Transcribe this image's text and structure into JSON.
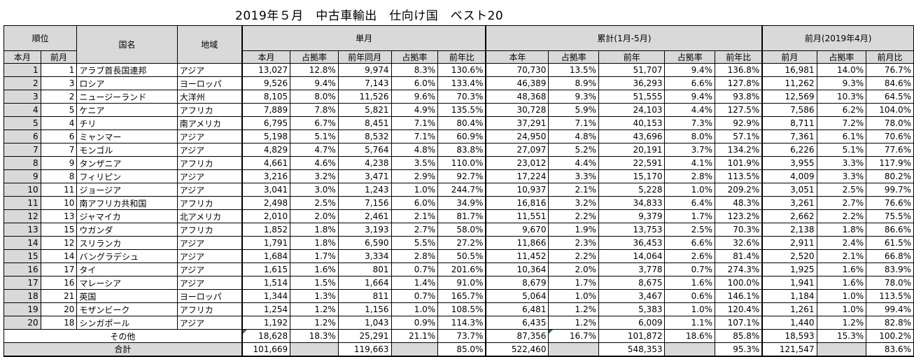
{
  "title": "2019年５月　中古車輸出　仕向け国　ベスト20",
  "headers": {
    "rank": "順位",
    "country": "国名",
    "region": "地域",
    "monthly": "単月",
    "cumulative": "累計(1月-5月)",
    "prev_month_group": "前月(2019年4月)",
    "rank_this": "本月",
    "rank_prev": "前月",
    "m_this": "本月",
    "m_share": "占拠率",
    "m_prev_year": "前年同月",
    "m_share2": "占拠率",
    "m_yoy": "前年比",
    "c_this": "本年",
    "c_share": "占拠率",
    "c_prev": "前年",
    "c_share2": "占拠率",
    "c_yoy": "前年比",
    "p_prev": "前月",
    "p_share": "占拠率",
    "p_ratio": "前月比"
  },
  "rows": [
    {
      "r": "1",
      "p": "1",
      "name": "アラブ首長国連邦",
      "region": "アジア",
      "m": "13,027",
      "ms": "12.8%",
      "mp": "9,974",
      "mps": "8.3%",
      "my": "130.6%",
      "c": "70,730",
      "cs": "13.5%",
      "cp": "51,707",
      "cps": "9.4%",
      "cy": "136.8%",
      "pm": "16,981",
      "pms": "14.0%",
      "pr": "76.7%"
    },
    {
      "r": "2",
      "p": "3",
      "name": "ロシア",
      "region": "ヨーロッパ",
      "m": "9,526",
      "ms": "9.4%",
      "mp": "7,143",
      "mps": "6.0%",
      "my": "133.4%",
      "c": "46,389",
      "cs": "8.9%",
      "cp": "36,293",
      "cps": "6.6%",
      "cy": "127.8%",
      "pm": "11,262",
      "pms": "9.3%",
      "pr": "84.6%"
    },
    {
      "r": "3",
      "p": "2",
      "name": "ニュージーランド",
      "region": "大洋州",
      "m": "8,105",
      "ms": "8.0%",
      "mp": "11,526",
      "mps": "9.6%",
      "my": "70.3%",
      "c": "48,368",
      "cs": "9.3%",
      "cp": "51,555",
      "cps": "9.4%",
      "cy": "93.8%",
      "pm": "12,569",
      "pms": "10.3%",
      "pr": "64.5%"
    },
    {
      "r": "4",
      "p": "5",
      "name": "ケニア",
      "region": "アフリカ",
      "m": "7,889",
      "ms": "7.8%",
      "mp": "5,821",
      "mps": "4.9%",
      "my": "135.5%",
      "c": "30,728",
      "cs": "5.9%",
      "cp": "24,103",
      "cps": "4.4%",
      "cy": "127.5%",
      "pm": "7,586",
      "pms": "6.2%",
      "pr": "104.0%"
    },
    {
      "r": "5",
      "p": "4",
      "name": "チリ",
      "region": "南アメリカ",
      "m": "6,795",
      "ms": "6.7%",
      "mp": "8,451",
      "mps": "7.1%",
      "my": "80.4%",
      "c": "37,291",
      "cs": "7.1%",
      "cp": "40,153",
      "cps": "7.3%",
      "cy": "92.9%",
      "pm": "8,711",
      "pms": "7.2%",
      "pr": "78.0%"
    },
    {
      "r": "6",
      "p": "6",
      "name": "ミャンマー",
      "region": "アジア",
      "m": "5,198",
      "ms": "5.1%",
      "mp": "8,532",
      "mps": "7.1%",
      "my": "60.9%",
      "c": "24,950",
      "cs": "4.8%",
      "cp": "43,696",
      "cps": "8.0%",
      "cy": "57.1%",
      "pm": "7,361",
      "pms": "6.1%",
      "pr": "70.6%"
    },
    {
      "r": "7",
      "p": "7",
      "name": "モンゴル",
      "region": "アジア",
      "m": "4,829",
      "ms": "4.7%",
      "mp": "5,764",
      "mps": "4.8%",
      "my": "83.8%",
      "c": "27,097",
      "cs": "5.2%",
      "cp": "20,191",
      "cps": "3.7%",
      "cy": "134.2%",
      "pm": "6,226",
      "pms": "5.1%",
      "pr": "77.6%"
    },
    {
      "r": "8",
      "p": "9",
      "name": "タンザニア",
      "region": "アフリカ",
      "m": "4,661",
      "ms": "4.6%",
      "mp": "4,238",
      "mps": "3.5%",
      "my": "110.0%",
      "c": "23,012",
      "cs": "4.4%",
      "cp": "22,591",
      "cps": "4.1%",
      "cy": "101.9%",
      "pm": "3,955",
      "pms": "3.3%",
      "pr": "117.9%"
    },
    {
      "r": "9",
      "p": "8",
      "name": "フィリピン",
      "region": "アジア",
      "m": "3,216",
      "ms": "3.2%",
      "mp": "3,471",
      "mps": "2.9%",
      "my": "92.7%",
      "c": "17,224",
      "cs": "3.3%",
      "cp": "15,170",
      "cps": "2.8%",
      "cy": "113.5%",
      "pm": "4,009",
      "pms": "3.3%",
      "pr": "80.2%"
    },
    {
      "r": "10",
      "p": "11",
      "name": "ジョージア",
      "region": "アジア",
      "m": "3,041",
      "ms": "3.0%",
      "mp": "1,243",
      "mps": "1.0%",
      "my": "244.7%",
      "c": "10,937",
      "cs": "2.1%",
      "cp": "5,228",
      "cps": "1.0%",
      "cy": "209.2%",
      "pm": "3,051",
      "pms": "2.5%",
      "pr": "99.7%"
    },
    {
      "r": "11",
      "p": "10",
      "name": "南アフリカ共和国",
      "region": "アフリカ",
      "m": "2,498",
      "ms": "2.5%",
      "mp": "7,156",
      "mps": "6.0%",
      "my": "34.9%",
      "c": "16,816",
      "cs": "3.2%",
      "cp": "34,833",
      "cps": "6.4%",
      "cy": "48.3%",
      "pm": "3,261",
      "pms": "2.7%",
      "pr": "76.6%"
    },
    {
      "r": "12",
      "p": "13",
      "name": "ジャマイカ",
      "region": "北アメリカ",
      "m": "2,010",
      "ms": "2.0%",
      "mp": "2,461",
      "mps": "2.1%",
      "my": "81.7%",
      "c": "11,551",
      "cs": "2.2%",
      "cp": "9,379",
      "cps": "1.7%",
      "cy": "123.2%",
      "pm": "2,662",
      "pms": "2.2%",
      "pr": "75.5%"
    },
    {
      "r": "13",
      "p": "15",
      "name": "ウガンダ",
      "region": "アフリカ",
      "m": "1,852",
      "ms": "1.8%",
      "mp": "3,193",
      "mps": "2.7%",
      "my": "58.0%",
      "c": "9,670",
      "cs": "1.9%",
      "cp": "13,753",
      "cps": "2.5%",
      "cy": "70.3%",
      "pm": "2,138",
      "pms": "1.8%",
      "pr": "86.6%"
    },
    {
      "r": "14",
      "p": "12",
      "name": "スリランカ",
      "region": "アジア",
      "m": "1,791",
      "ms": "1.8%",
      "mp": "6,590",
      "mps": "5.5%",
      "my": "27.2%",
      "c": "11,866",
      "cs": "2.3%",
      "cp": "36,453",
      "cps": "6.6%",
      "cy": "32.6%",
      "pm": "2,911",
      "pms": "2.4%",
      "pr": "61.5%"
    },
    {
      "r": "15",
      "p": "14",
      "name": "バングラデシュ",
      "region": "アジア",
      "m": "1,684",
      "ms": "1.7%",
      "mp": "3,334",
      "mps": "2.8%",
      "my": "50.5%",
      "c": "11,452",
      "cs": "2.2%",
      "cp": "14,064",
      "cps": "2.6%",
      "cy": "81.4%",
      "pm": "2,520",
      "pms": "2.1%",
      "pr": "66.8%"
    },
    {
      "r": "16",
      "p": "17",
      "name": "タイ",
      "region": "アジア",
      "m": "1,615",
      "ms": "1.6%",
      "mp": "801",
      "mps": "0.7%",
      "my": "201.6%",
      "c": "10,364",
      "cs": "2.0%",
      "cp": "3,778",
      "cps": "0.7%",
      "cy": "274.3%",
      "pm": "1,925",
      "pms": "1.6%",
      "pr": "83.9%"
    },
    {
      "r": "17",
      "p": "16",
      "name": "マレーシア",
      "region": "アジア",
      "m": "1,514",
      "ms": "1.5%",
      "mp": "1,664",
      "mps": "1.4%",
      "my": "91.0%",
      "c": "8,679",
      "cs": "1.7%",
      "cp": "8,675",
      "cps": "1.6%",
      "cy": "100.0%",
      "pm": "1,941",
      "pms": "1.6%",
      "pr": "78.0%"
    },
    {
      "r": "18",
      "p": "21",
      "name": "英国",
      "region": "ヨーロッパ",
      "m": "1,344",
      "ms": "1.3%",
      "mp": "811",
      "mps": "0.7%",
      "my": "165.7%",
      "c": "5,064",
      "cs": "1.0%",
      "cp": "3,467",
      "cps": "0.6%",
      "cy": "146.1%",
      "pm": "1,184",
      "pms": "1.0%",
      "pr": "113.5%"
    },
    {
      "r": "19",
      "p": "20",
      "name": "モザンビーク",
      "region": "アフリカ",
      "m": "1,254",
      "ms": "1.2%",
      "mp": "1,156",
      "mps": "1.0%",
      "my": "108.5%",
      "c": "6,481",
      "cs": "1.2%",
      "cp": "5,383",
      "cps": "1.0%",
      "cy": "120.4%",
      "pm": "1,261",
      "pms": "1.0%",
      "pr": "99.4%"
    },
    {
      "r": "20",
      "p": "18",
      "name": "シンガポール",
      "region": "アジア",
      "m": "1,192",
      "ms": "1.2%",
      "mp": "1,043",
      "mps": "0.9%",
      "my": "114.3%",
      "c": "6,435",
      "cs": "1.2%",
      "cp": "6,009",
      "cps": "1.1%",
      "cy": "107.1%",
      "pm": "1,440",
      "pms": "1.2%",
      "pr": "82.8%"
    }
  ],
  "other": {
    "label": "その他",
    "m": "18,628",
    "ms": "18.3%",
    "mp": "25,291",
    "mps": "21.1%",
    "my": "73.7%",
    "c": "87,356",
    "cs": "16.7%",
    "cp": "101,872",
    "cps": "18.6%",
    "cy": "85.8%",
    "pm": "18,593",
    "pms": "15.3%",
    "pr": "100.2%"
  },
  "total": {
    "label": "合計",
    "m": "101,669",
    "mp": "119,663",
    "my": "85.0%",
    "c": "522,460",
    "cp": "548,353",
    "cy": "95.3%",
    "pm": "121,547",
    "pr": "83.6%"
  }
}
